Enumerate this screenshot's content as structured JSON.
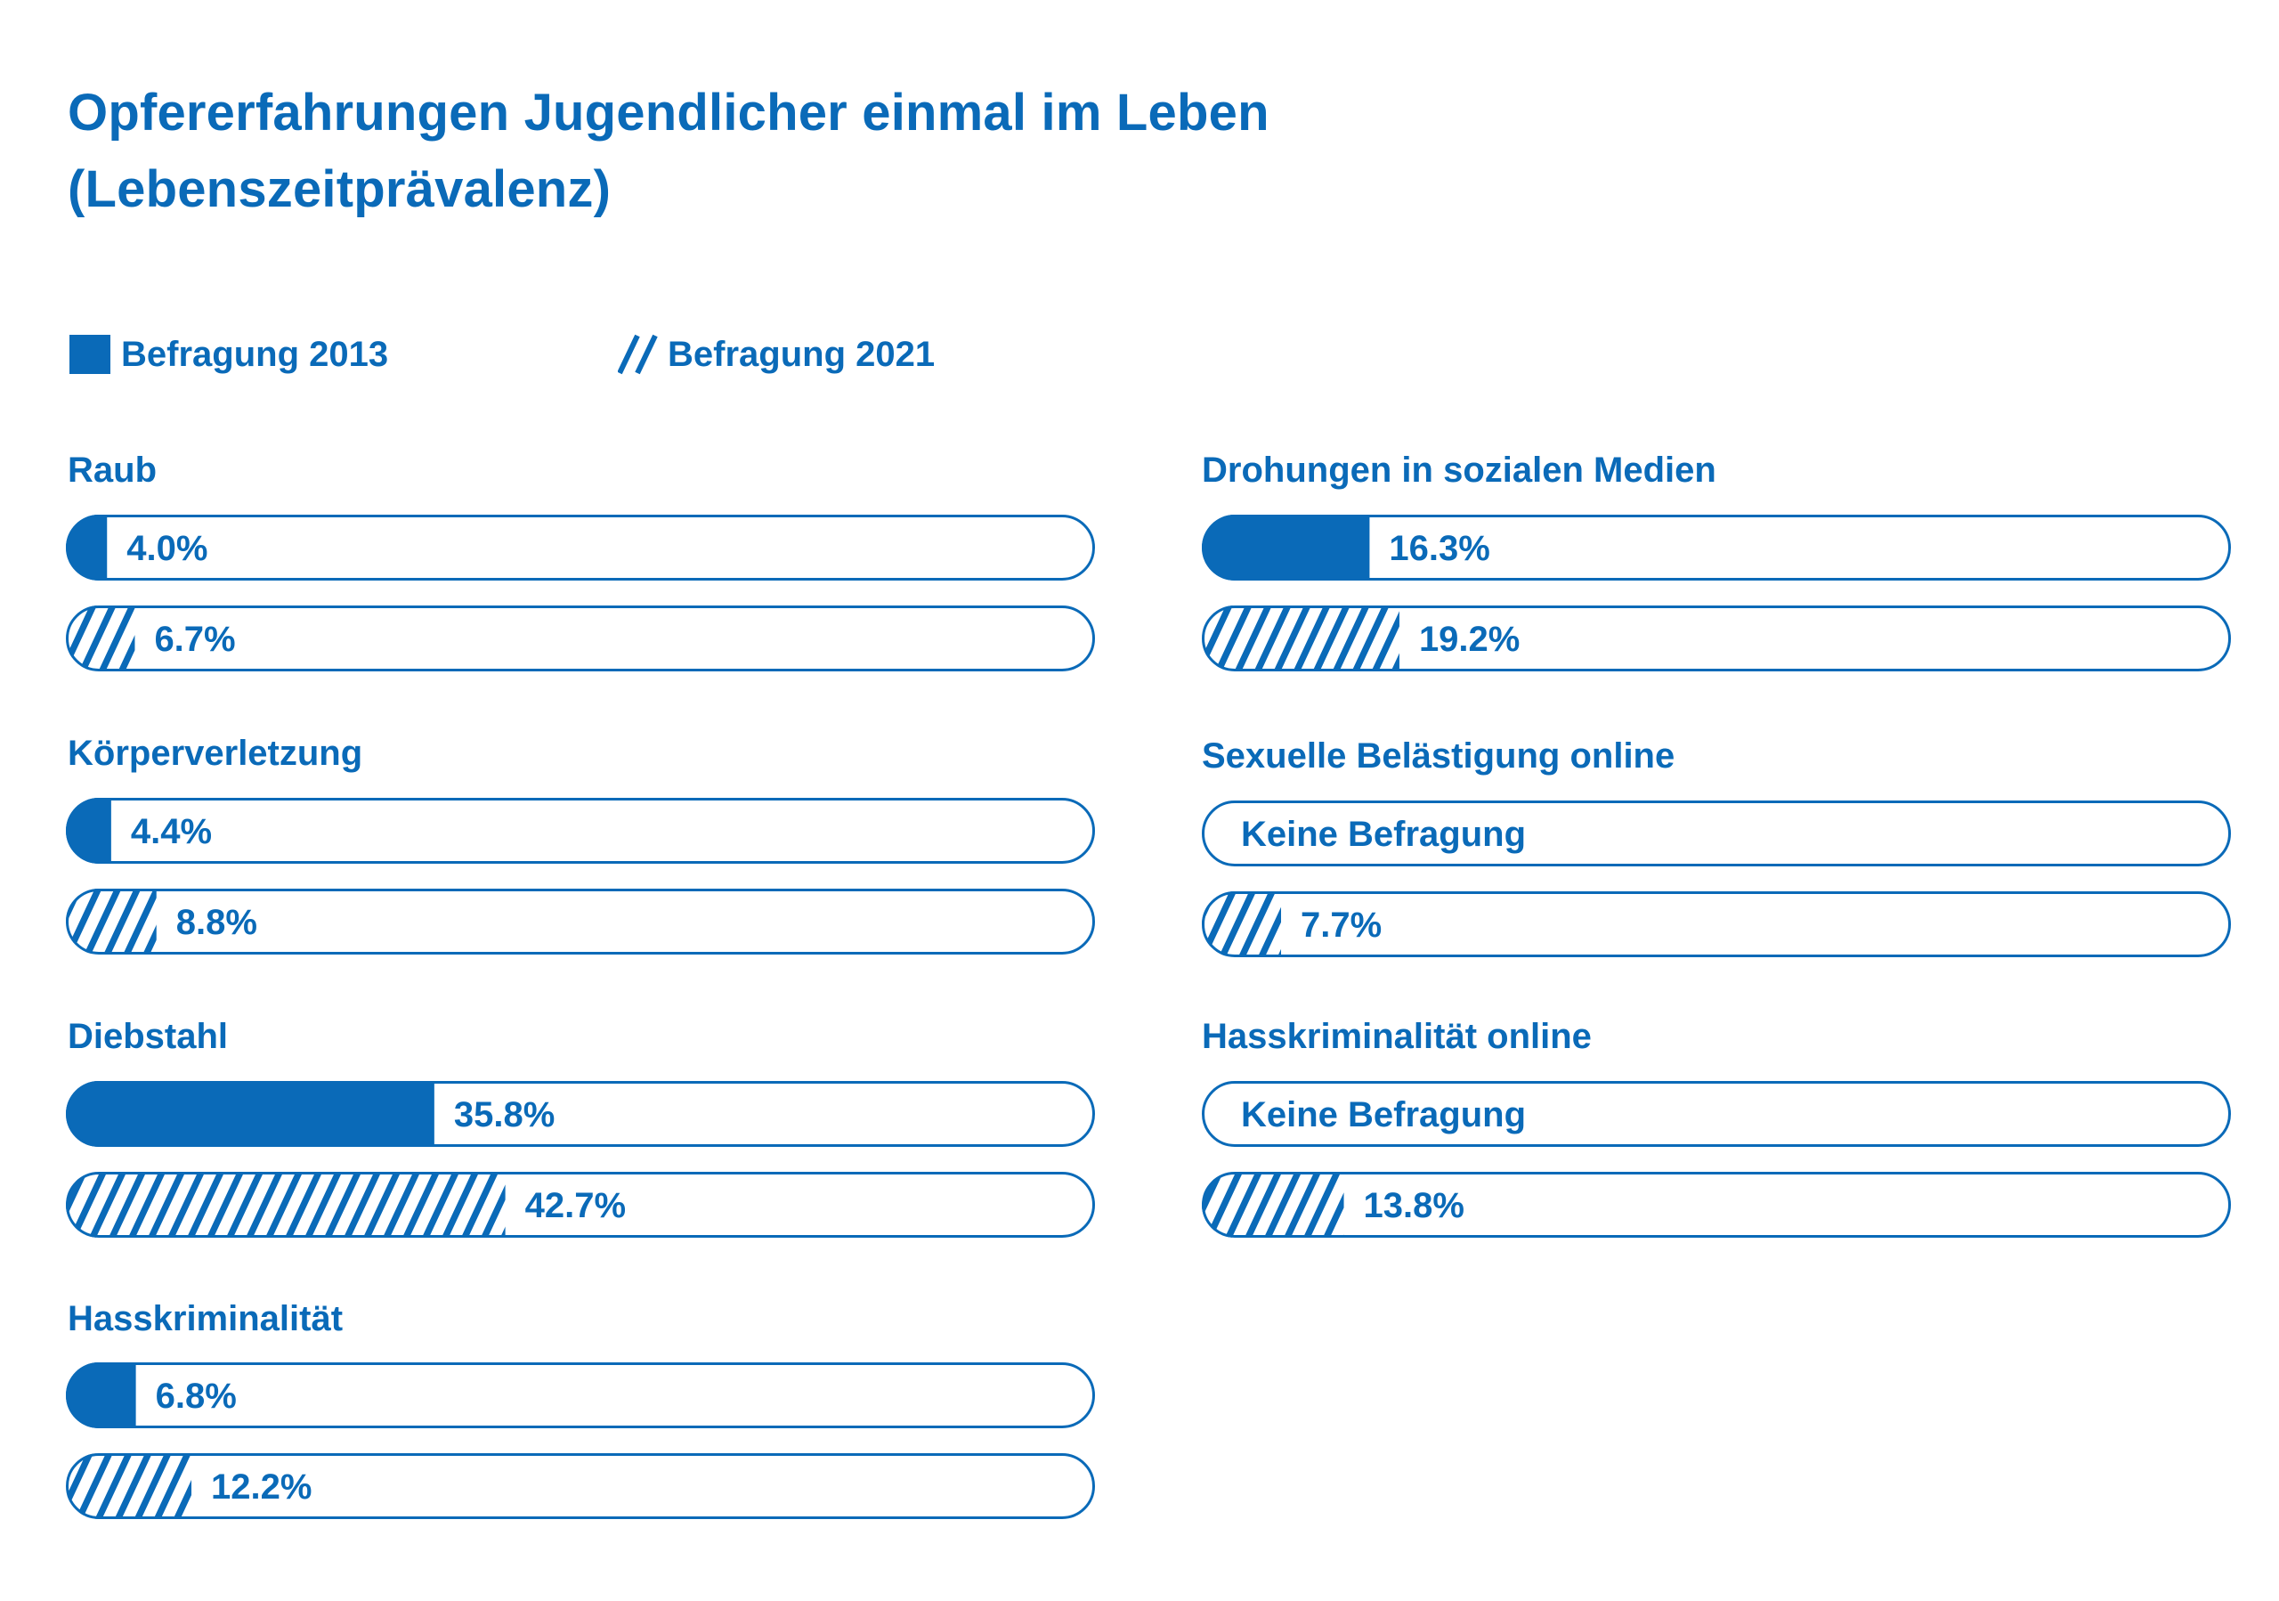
{
  "title_line1": "Opfererfahrungen Jugendlicher einmal im Leben",
  "title_line2": "(Lebenszeitprävalenz)",
  "colors": {
    "accent": "#0a6ab8",
    "background": "#ffffff"
  },
  "legend": {
    "s2013": "Befragung 2013",
    "s2021": "Befragung 2021"
  },
  "groups": {
    "raub": "Raub",
    "koerper": "Körperverletzung",
    "diebstahl": "Diebstahl",
    "hass": "Hasskriminalität",
    "drohungen": "Drohungen in sozialen Medien",
    "sexuelle": "Sexuelle Belästigung online",
    "hassonline": "Hasskriminalität online"
  },
  "chart_data": {
    "type": "bar",
    "title": "Opfererfahrungen Jugendlicher einmal im Leben (Lebenszeitprävalenz)",
    "unit": "%",
    "orientation": "horizontal",
    "xlim": [
      0,
      100
    ],
    "legend_position": "top-left",
    "grid": false,
    "categories": [
      "Raub",
      "Körperverletzung",
      "Diebstahl",
      "Hasskriminalität",
      "Drohungen in sozialen Medien",
      "Sexuelle Belästigung online",
      "Hasskriminalität online"
    ],
    "series": [
      {
        "name": "Befragung 2013",
        "style": "solid",
        "values": [
          4.0,
          4.4,
          35.8,
          6.8,
          16.3,
          null,
          null
        ],
        "labels": [
          "4.0%",
          "4.4%",
          "35.8%",
          "6.8%",
          "16.3%",
          "Keine Befragung",
          "Keine Befragung"
        ]
      },
      {
        "name": "Befragung 2021",
        "style": "hatched",
        "values": [
          6.7,
          8.8,
          42.7,
          12.2,
          19.2,
          7.7,
          13.8
        ],
        "labels": [
          "6.7%",
          "8.8%",
          "42.7%",
          "12.2%",
          "19.2%",
          "7.7%",
          "13.8%"
        ]
      }
    ]
  }
}
